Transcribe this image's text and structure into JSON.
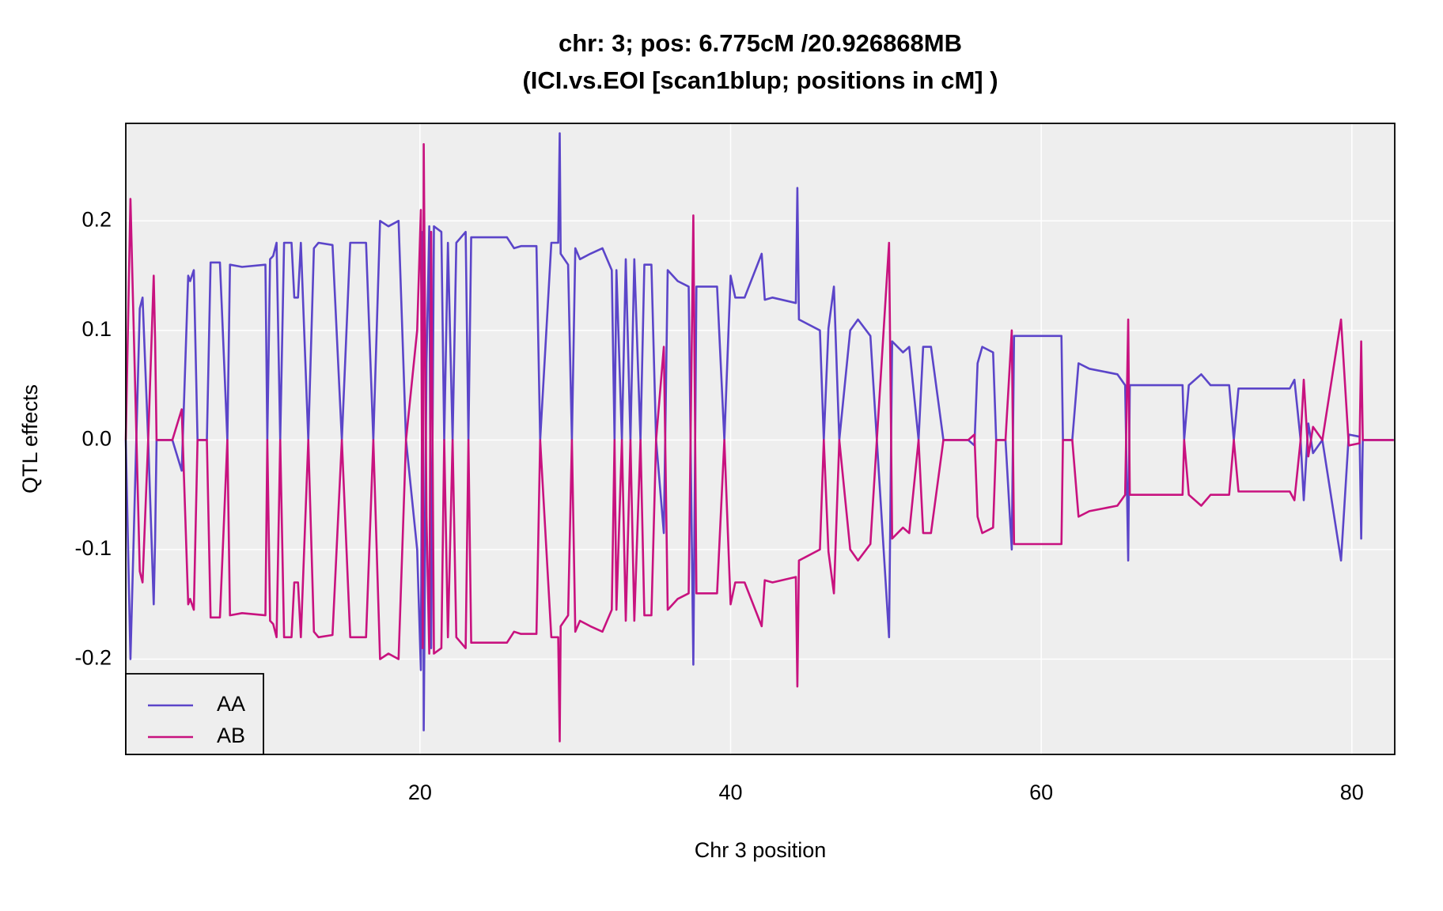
{
  "chart_data": {
    "type": "line",
    "title": "chr: 3; pos: 6.775cM /20.926868MB",
    "subtitle": "(ICI.vs.EOI [scan1blup; positions in cM] )",
    "x_label": "Chr 3 position",
    "y_label": "QTL effects",
    "xlim": [
      1.06,
      82.76
    ],
    "ylim": [
      -0.287,
      0.289
    ],
    "xticks": [
      20,
      40,
      60,
      80
    ],
    "yticks": [
      -0.2,
      -0.1,
      {
        "value": 0,
        "label": "0.0"
      },
      0.1,
      0.2
    ],
    "grid": true,
    "legend": "bottom-left",
    "x": [
      1.06,
      1.36,
      1.96,
      2.14,
      2.5,
      2.86,
      2.95,
      3.04,
      4.06,
      4.66,
      5.08,
      5.2,
      5.44,
      5.68,
      6.28,
      6.52,
      7.12,
      7.6,
      7.77,
      8.55,
      10.05,
      10.17,
      10.35,
      10.55,
      10.77,
      11.0,
      11.25,
      11.73,
      11.91,
      12.15,
      12.33,
      12.81,
      13.17,
      13.47,
      14.37,
      14.97,
      15.51,
      16.53,
      17.0,
      17.43,
      17.97,
      18.62,
      19.1,
      19.82,
      20.06,
      20.18,
      20.24,
      20.42,
      20.6,
      20.72,
      20.9,
      21.38,
      21.56,
      21.8,
      22.1,
      22.34,
      22.94,
      23.12,
      23.3,
      25.6,
      26.06,
      26.5,
      27.5,
      27.74,
      28.46,
      28.9,
      29.0,
      29.06,
      29.54,
      29.78,
      30.0,
      30.3,
      30.97,
      31.75,
      32.35,
      32.53,
      32.65,
      33.0,
      33.25,
      33.55,
      33.8,
      34.2,
      34.45,
      34.9,
      35.2,
      35.7,
      35.95,
      36.6,
      37.3,
      37.6,
      37.8,
      39.13,
      39.6,
      40.0,
      40.3,
      40.9,
      42.0,
      42.2,
      42.7,
      44.2,
      44.3,
      44.4,
      45.75,
      46.0,
      46.3,
      46.65,
      47.0,
      47.7,
      48.2,
      49.0,
      50.2,
      50.4,
      51.1,
      51.5,
      52.1,
      52.4,
      52.9,
      53.7,
      55.3,
      55.7,
      55.9,
      56.2,
      56.9,
      57.1,
      57.7,
      58.1,
      58.25,
      61.3,
      61.4,
      62.0,
      62.4,
      63.1,
      64.9,
      65.4,
      65.6,
      65.7,
      69.1,
      69.2,
      69.5,
      70.3,
      70.9,
      72.1,
      72.4,
      72.7,
      76.0,
      76.3,
      76.7,
      76.9,
      77.2,
      77.5,
      78.1,
      79.3,
      79.8,
      80.5,
      80.6,
      80.7,
      82.7
    ],
    "series": [
      {
        "name": "AA",
        "color": "#5b45c9",
        "values": [
          0,
          -0.2,
          0.12,
          0.13,
          0,
          -0.15,
          -0.09,
          0,
          0,
          -0.028,
          0.15,
          0.145,
          0.155,
          0,
          0,
          0.162,
          0.162,
          0,
          0.16,
          0.158,
          0.16,
          0,
          0.165,
          0.168,
          0.18,
          0,
          0.18,
          0.18,
          0.13,
          0.13,
          0.18,
          0,
          0.175,
          0.18,
          0.178,
          0,
          0.18,
          0.18,
          0,
          0.2,
          0.195,
          0.2,
          0,
          -0.1,
          -0.21,
          0.19,
          -0.265,
          0.07,
          0.195,
          -0.19,
          0.195,
          0.19,
          0,
          0.18,
          0,
          0.18,
          0.19,
          0,
          0.185,
          0.185,
          0.175,
          0.177,
          0.177,
          0,
          0.18,
          0.18,
          0.28,
          0.17,
          0.16,
          0,
          0.175,
          0.165,
          0.17,
          0.175,
          0.155,
          0,
          0.155,
          0,
          0.165,
          0,
          0.165,
          0,
          0.16,
          0.16,
          0,
          -0.085,
          0.155,
          0.145,
          0.14,
          -0.205,
          0.14,
          0.14,
          0,
          0.15,
          0.13,
          0.13,
          0.17,
          0.128,
          0.13,
          0.125,
          0.23,
          0.11,
          0.1,
          0,
          0.102,
          0.14,
          0,
          0.1,
          0.11,
          0.095,
          -0.18,
          0.09,
          0.08,
          0.085,
          0,
          0.085,
          0.085,
          0,
          0,
          -0.005,
          0.07,
          0.085,
          0.08,
          0,
          0,
          -0.1,
          0.095,
          0.095,
          0,
          0,
          0.07,
          0.065,
          0.06,
          0.05,
          -0.11,
          0.05,
          0.05,
          0,
          0.05,
          0.06,
          0.05,
          0.05,
          0,
          0.047,
          0.047,
          0.055,
          0,
          -0.055,
          0.015,
          -0.012,
          0,
          -0.11,
          0.005,
          0.003,
          -0.09,
          0,
          0
        ]
      },
      {
        "name": "AB",
        "color": "#c8127f",
        "values": [
          0,
          0.22,
          -0.12,
          -0.13,
          0,
          0.15,
          0.09,
          0,
          0,
          0.028,
          -0.15,
          -0.145,
          -0.155,
          0,
          0,
          -0.162,
          -0.162,
          0,
          -0.16,
          -0.158,
          -0.16,
          0,
          -0.165,
          -0.168,
          -0.18,
          0,
          -0.18,
          -0.18,
          -0.13,
          -0.13,
          -0.18,
          0,
          -0.175,
          -0.18,
          -0.178,
          0,
          -0.18,
          -0.18,
          0,
          -0.2,
          -0.195,
          -0.2,
          0,
          0.1,
          0.21,
          -0.19,
          0.27,
          -0.07,
          -0.195,
          0.19,
          -0.195,
          -0.19,
          0,
          -0.18,
          0,
          -0.18,
          -0.19,
          0,
          -0.185,
          -0.185,
          -0.175,
          -0.177,
          -0.177,
          0,
          -0.18,
          -0.18,
          -0.275,
          -0.17,
          -0.16,
          0,
          -0.175,
          -0.165,
          -0.17,
          -0.175,
          -0.155,
          0,
          -0.155,
          0,
          -0.165,
          0,
          -0.165,
          0,
          -0.16,
          -0.16,
          0,
          0.085,
          -0.155,
          -0.145,
          -0.14,
          0.205,
          -0.14,
          -0.14,
          0,
          -0.15,
          -0.13,
          -0.13,
          -0.17,
          -0.128,
          -0.13,
          -0.125,
          -0.225,
          -0.11,
          -0.1,
          0,
          -0.102,
          -0.14,
          0,
          -0.1,
          -0.11,
          -0.095,
          0.18,
          -0.09,
          -0.08,
          -0.085,
          0,
          -0.085,
          -0.085,
          0,
          0,
          0.005,
          -0.07,
          -0.085,
          -0.08,
          0,
          0,
          0.1,
          -0.095,
          -0.095,
          0,
          0,
          -0.07,
          -0.065,
          -0.06,
          -0.05,
          0.11,
          -0.05,
          -0.05,
          0,
          -0.05,
          -0.06,
          -0.05,
          -0.05,
          0,
          -0.047,
          -0.047,
          -0.055,
          0,
          0.055,
          -0.015,
          0.012,
          0,
          0.11,
          -0.005,
          -0.003,
          0.09,
          0,
          0
        ]
      }
    ]
  }
}
